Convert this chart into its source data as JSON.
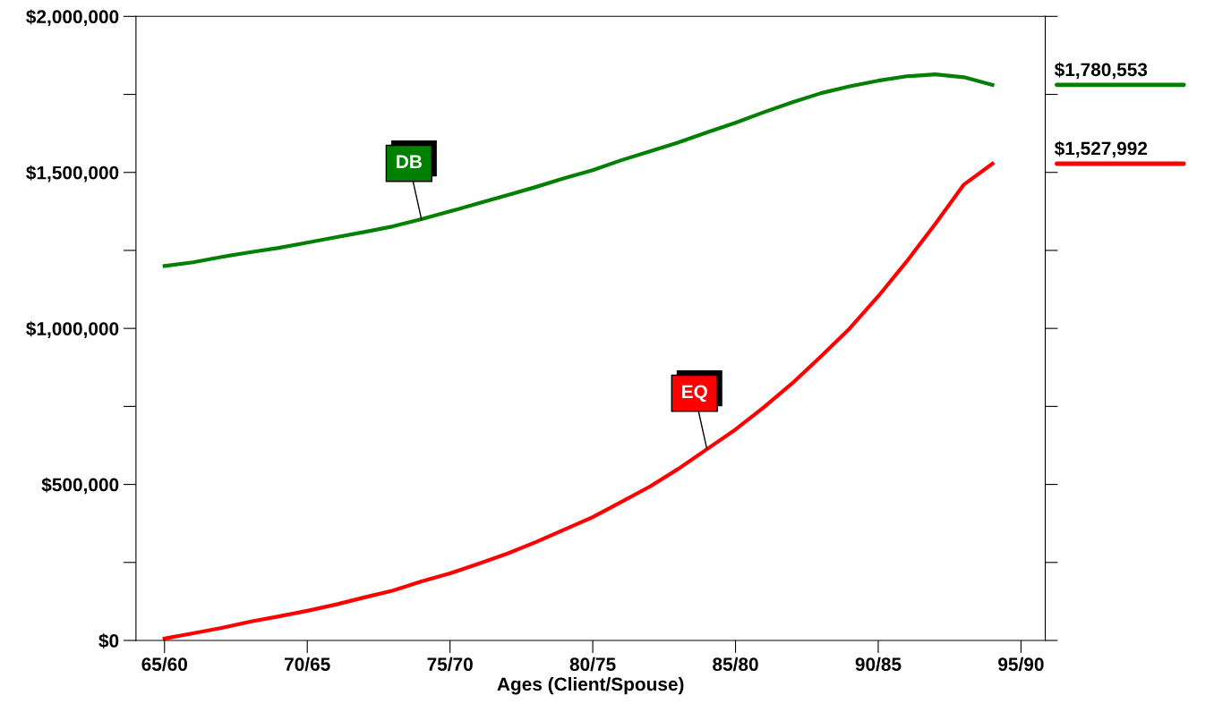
{
  "chart_data": {
    "type": "line",
    "xlabel": "Ages (Client/Spouse)",
    "categories": [
      "65/60",
      null,
      null,
      null,
      null,
      "70/65",
      null,
      null,
      null,
      null,
      "75/70",
      null,
      null,
      null,
      null,
      "80/75",
      null,
      null,
      null,
      null,
      "85/80",
      null,
      null,
      null,
      null,
      "90/85",
      null,
      null,
      null,
      null,
      "95/90"
    ],
    "series": [
      {
        "name": "DB",
        "color": "#008000",
        "values": [
          1200000,
          1212000,
          1229000,
          1244000,
          1258000,
          1275000,
          1292000,
          1309000,
          1327000,
          1350000,
          1375000,
          1401000,
          1427000,
          1453000,
          1481000,
          1507000,
          1539000,
          1567000,
          1596000,
          1628000,
          1659000,
          1693000,
          1725000,
          1754000,
          1776000,
          1794000,
          1808000,
          1814000,
          1805000,
          1780553,
          null
        ]
      },
      {
        "name": "EQ",
        "color": "#ff0000",
        "values": [
          6000,
          23000,
          40000,
          60000,
          77000,
          95000,
          115000,
          138000,
          160000,
          189000,
          215000,
          246000,
          278000,
          315000,
          355000,
          395000,
          444000,
          493000,
          550000,
          613000,
          676000,
          748000,
          825000,
          911000,
          1000000,
          1103000,
          1215000,
          1335000,
          1461000,
          1527992,
          null
        ]
      }
    ],
    "annotations": [
      "$1,780,553",
      "$1,527,992"
    ],
    "ylim": [
      0,
      2000000
    ],
    "yticks": [
      {
        "value": 0,
        "label": "$0"
      },
      {
        "value": 250000,
        "label": null
      },
      {
        "value": 500000,
        "label": "$500,000"
      },
      {
        "value": 750000,
        "label": null
      },
      {
        "value": 1000000,
        "label": "$1,000,000"
      },
      {
        "value": 1250000,
        "label": null
      },
      {
        "value": 1500000,
        "label": "$1,500,000"
      },
      {
        "value": 1750000,
        "label": null
      },
      {
        "value": 2000000,
        "label": "$2,000,000"
      }
    ],
    "grid": false,
    "legend": false,
    "marker": "none",
    "line_style": "solid"
  }
}
